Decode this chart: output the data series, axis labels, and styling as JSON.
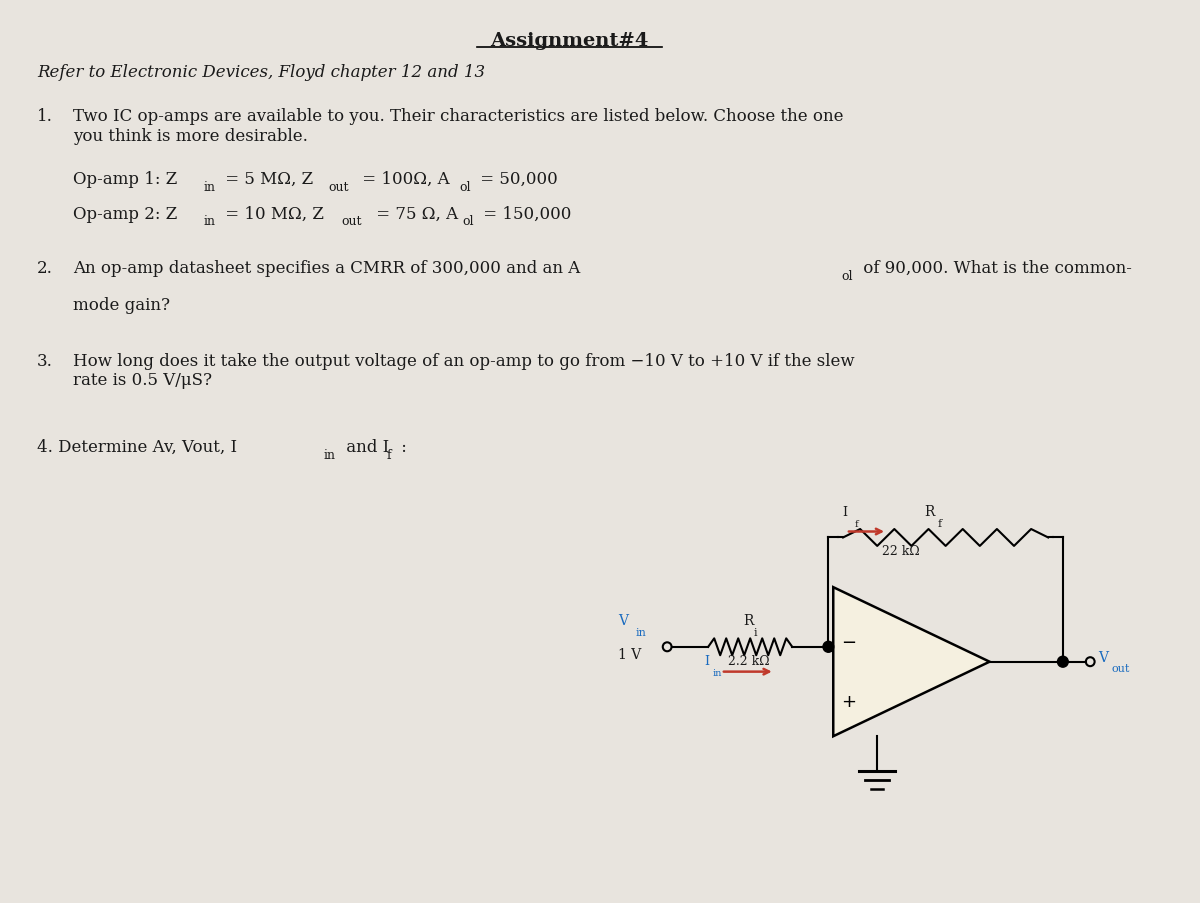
{
  "title": "Assignment#4",
  "subtitle": "Refer to Electronic Devices, Floyd chapter 12 and 13",
  "bg_color": "#e8e4de",
  "text_color": "#1a1a1a",
  "q1_intro": "Two IC op-amps are available to you. Their characteristics are listed below. Choose the one\nyou think is more desirable.",
  "q3_text": "How long does it take the output voltage of an op-amp to go from −10 V to +10 V if the slew\nrate is 0.5 V/μS?",
  "blue_color": "#1a6bbf",
  "red_color": "#c0392b",
  "opamp_face": "#f5f0e0"
}
